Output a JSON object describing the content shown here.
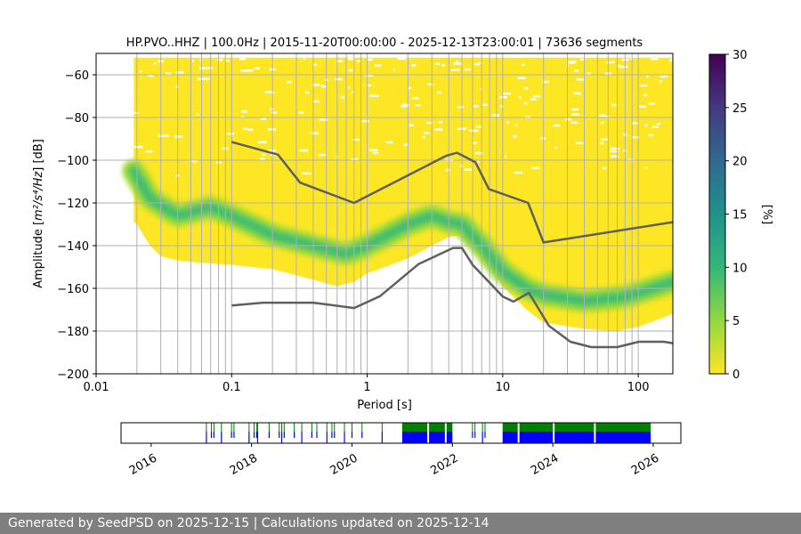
{
  "colors": {
    "background_psd": "#fde725",
    "reference_lines": "#5f5f5f",
    "grid": "#b0b0b0",
    "availability_top": "#008000",
    "availability_bottom": "#0000ff",
    "footer_bg": "#7f7f7f"
  },
  "chart_data": [
    {
      "type": "heatmap",
      "title": "HP.PVO..HHZ | 100.0Hz | 2015-11-20T00:00:00 - 2025-12-13T23:00:01 | 73636 segments",
      "xlabel": "Period [s]",
      "ylabel_prefix": "Amplitude [",
      "ylabel_math": "m²/s⁴/Hz",
      "ylabel_suffix": "] [dB]",
      "xscale": "log",
      "xlim": [
        0.01,
        180
      ],
      "ylim": [
        -200,
        -50
      ],
      "x_ticks": [
        0.01,
        0.1,
        1,
        10,
        100
      ],
      "x_tick_labels": [
        "0.01",
        "0.1",
        "1",
        "10",
        "100"
      ],
      "y_ticks": [
        -60,
        -80,
        -100,
        -120,
        -140,
        -160,
        -180,
        -200
      ],
      "y_tick_labels": [
        "−60",
        "−80",
        "−100",
        "−120",
        "−140",
        "−160",
        "−180",
        "−200"
      ],
      "period_gridlines": [
        0.02,
        0.03,
        0.04,
        0.05,
        0.06,
        0.07,
        0.08,
        0.09,
        0.1,
        0.2,
        0.3,
        0.4,
        0.5,
        0.6,
        0.7,
        0.8,
        0.9,
        1,
        2,
        3,
        4,
        5,
        6,
        7,
        8,
        9,
        10,
        20,
        30,
        40,
        50,
        60,
        70,
        80,
        90,
        100
      ],
      "psd_envelope": {
        "period": [
          0.019,
          0.02,
          0.025,
          0.03,
          0.04,
          0.06,
          0.1,
          0.2,
          0.4,
          0.6,
          0.8,
          1,
          2,
          3,
          4,
          5,
          6,
          8,
          10,
          15,
          20,
          40,
          70,
          100,
          180
        ],
        "upper_db": [
          -52,
          -52,
          -52,
          -52,
          -52,
          -52,
          -52,
          -52,
          -52,
          -52,
          -52,
          -52,
          -52,
          -52,
          -52,
          -52,
          -52,
          -52,
          -52,
          -52,
          -52,
          -52,
          -52,
          -52,
          -52
        ],
        "lower_db": [
          -129,
          -130,
          -140,
          -145,
          -147,
          -148,
          -149,
          -151,
          -156,
          -159,
          -157,
          -153,
          -146,
          -140,
          -136,
          -135,
          -137,
          -150,
          -159,
          -170,
          -176,
          -179,
          -180,
          -178,
          -172
        ]
      },
      "psd_mode": {
        "period": [
          0.019,
          0.025,
          0.04,
          0.07,
          0.1,
          0.2,
          0.4,
          0.7,
          1,
          2,
          3,
          4,
          5,
          7,
          10,
          15,
          20,
          40,
          80,
          180
        ],
        "db": [
          -105,
          -118,
          -126,
          -122,
          -126,
          -135,
          -140,
          -144,
          -140,
          -130,
          -126,
          -129,
          -130,
          -140,
          -152,
          -160,
          -163,
          -166,
          -164,
          -157
        ]
      },
      "series": [
        {
          "name": "NHNM",
          "period": [
            0.1,
            0.22,
            0.32,
            0.8,
            3.8,
            4.6,
            6.3,
            7.9,
            15.4,
            20,
            180
          ],
          "values": [
            -91.5,
            -97.4,
            -110.5,
            -120,
            -98,
            -96.5,
            -101,
            -113.5,
            -120,
            -138.5,
            -129
          ]
        },
        {
          "name": "NLNM",
          "period": [
            0.1,
            0.17,
            0.4,
            0.8,
            1.24,
            2.4,
            4.3,
            5,
            6,
            10,
            12,
            15.6,
            21.9,
            31.6,
            45,
            70,
            101,
            154,
            180
          ],
          "values": [
            -168,
            -166.7,
            -166.7,
            -169.2,
            -163.7,
            -148.6,
            -141.1,
            -141.1,
            -149,
            -163.8,
            -166.2,
            -162.1,
            -177.5,
            -185,
            -187.5,
            -187.5,
            -185,
            -185,
            -185.7
          ]
        }
      ]
    },
    {
      "type": "heatmap",
      "name": "colorbar",
      "label": "[%]",
      "range": [
        0,
        30
      ],
      "ticks": [
        0,
        5,
        10,
        15,
        20,
        25,
        30
      ],
      "tick_labels": [
        "0",
        "5",
        "10",
        "15",
        "20",
        "25",
        "30"
      ],
      "colormap": "viridis",
      "colormap_stops": [
        "#fde725",
        "#90d743",
        "#35b779",
        "#21918c",
        "#31688e",
        "#443983",
        "#440154"
      ]
    },
    {
      "type": "bar",
      "name": "data-availability",
      "xlim_year": [
        2015.4,
        2026.55
      ],
      "x_ticks_year": [
        2016,
        2018,
        2020,
        2022,
        2024,
        2026
      ],
      "x_tick_labels": [
        "2016",
        "2018",
        "2020",
        "2022",
        "2024",
        "2026"
      ],
      "continuous_blocks": [
        {
          "start": 2021.0,
          "end": 2022.0
        },
        {
          "start": 2023.0,
          "end": 2025.95
        }
      ],
      "block_gaps": [
        2021.5,
        2021.85,
        2023.3,
        2024.0,
        2024.82
      ],
      "sparse_ticks": [
        2017.1,
        2017.2,
        2017.25,
        2017.4,
        2017.6,
        2017.65,
        2017.95,
        2018.05,
        2018.1,
        2018.12,
        2018.35,
        2018.55,
        2018.6,
        2018.65,
        2018.85,
        2019.0,
        2019.2,
        2019.3,
        2019.5,
        2019.6,
        2019.65,
        2019.85,
        2020.0,
        2020.2,
        2020.6,
        2022.4,
        2022.45,
        2022.6,
        2022.65
      ]
    }
  ],
  "footer": {
    "text": "Generated by SeedPSD on 2025-12-15 | Calculations updated on 2025-12-14"
  }
}
